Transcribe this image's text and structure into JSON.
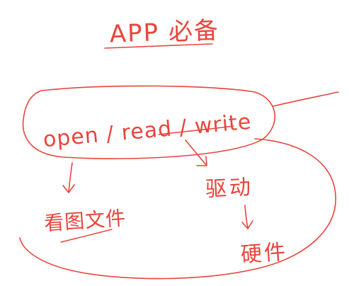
{
  "diagram": {
    "title": "APP 必备",
    "interface_calls": "open / read / write",
    "left_target": "看图文件",
    "driver_label": "驱动",
    "hardware_label": "硬件",
    "ink_color": "#e8453c"
  }
}
